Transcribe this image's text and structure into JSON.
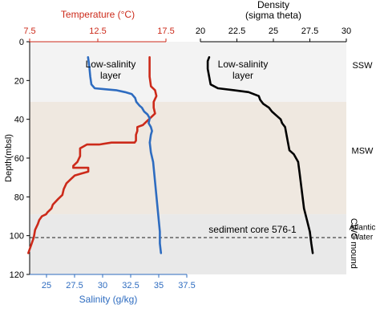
{
  "chart_data": [
    {
      "type": "line",
      "panel": "temperature-salinity",
      "ylabel": "Depth(mbsl)",
      "yticks": [
        "0",
        "20",
        "40",
        "60",
        "80",
        "100",
        "120"
      ],
      "ylim": [
        0,
        120
      ],
      "y_inverted": true,
      "top_axis": {
        "label": "Temperature (°C)",
        "color": "#cc2a1a",
        "lim": [
          7.5,
          17.5
        ],
        "ticks": [
          "7.5",
          "12.5",
          "17.5"
        ]
      },
      "bottom_axis": {
        "label": "Salinity (g/kg)",
        "color": "#2e6cc0",
        "lim": [
          23.5,
          37.5
        ],
        "ticks": [
          "25",
          "27.5",
          "30",
          "32.5",
          "35",
          "37.5"
        ]
      },
      "series": [
        {
          "axis": "top",
          "color": "#cc2a1a",
          "points": [
            [
              16.3,
              8
            ],
            [
              16.3,
              18
            ],
            [
              16.4,
              23
            ],
            [
              16.7,
              25
            ],
            [
              16.8,
              28
            ],
            [
              16.6,
              31
            ],
            [
              16.6,
              34
            ],
            [
              16.7,
              37
            ],
            [
              16.4,
              39
            ],
            [
              16.1,
              41
            ],
            [
              15.8,
              43
            ],
            [
              15.4,
              44
            ],
            [
              15.4,
              46
            ],
            [
              15.3,
              48
            ],
            [
              15.3,
              51
            ],
            [
              15.2,
              52
            ],
            [
              13.5,
              52
            ],
            [
              12.6,
              53
            ],
            [
              11.7,
              53
            ],
            [
              11.2,
              55
            ],
            [
              11.2,
              59
            ],
            [
              11.0,
              62
            ],
            [
              10.7,
              64
            ],
            [
              10.7,
              65
            ],
            [
              11.8,
              65
            ],
            [
              11.8,
              67
            ],
            [
              11.3,
              68
            ],
            [
              10.8,
              69
            ],
            [
              10.5,
              71
            ],
            [
              10.2,
              73
            ],
            [
              10.0,
              76
            ],
            [
              9.9,
              79
            ],
            [
              9.6,
              81
            ],
            [
              9.2,
              84
            ],
            [
              9.1,
              86
            ],
            [
              8.8,
              88
            ],
            [
              8.7,
              89
            ],
            [
              8.4,
              90
            ],
            [
              8.2,
              92
            ],
            [
              8.1,
              94
            ],
            [
              7.9,
              97
            ],
            [
              7.8,
              101
            ],
            [
              7.6,
              105
            ],
            [
              7.4,
              109
            ]
          ]
        },
        {
          "axis": "bottom",
          "color": "#2e6cc0",
          "points": [
            [
              28.7,
              8
            ],
            [
              28.8,
              12
            ],
            [
              28.9,
              18
            ],
            [
              29.0,
              22
            ],
            [
              29.3,
              24
            ],
            [
              30.2,
              24.5
            ],
            [
              31.2,
              25
            ],
            [
              32.0,
              26
            ],
            [
              32.6,
              27
            ],
            [
              32.9,
              29
            ],
            [
              33.0,
              31
            ],
            [
              33.3,
              33
            ],
            [
              33.5,
              34
            ],
            [
              33.7,
              36
            ],
            [
              34.0,
              37.5
            ],
            [
              34.2,
              39.5
            ],
            [
              34.1,
              42
            ],
            [
              34.3,
              44
            ],
            [
              34.4,
              46
            ],
            [
              34.3,
              48
            ],
            [
              34.2,
              52
            ],
            [
              34.3,
              57
            ],
            [
              34.5,
              62
            ],
            [
              34.6,
              68
            ],
            [
              34.7,
              74
            ],
            [
              34.8,
              80
            ],
            [
              34.9,
              86
            ],
            [
              35.0,
              92
            ],
            [
              35.1,
              98
            ],
            [
              35.1,
              104
            ],
            [
              35.2,
              109
            ]
          ]
        }
      ],
      "annotations": [
        "Low-salinity\nlayer"
      ]
    },
    {
      "type": "line",
      "panel": "density",
      "top_axis": {
        "label": "Density\n(sigma theta)",
        "color": "#000000",
        "lim": [
          20,
          30
        ],
        "ticks": [
          "20",
          "22.5",
          "25",
          "27.5",
          "30"
        ]
      },
      "series": [
        {
          "axis": "top",
          "color": "#000000",
          "points": [
            [
              20.6,
              8
            ],
            [
              20.5,
              10
            ],
            [
              20.5,
              14
            ],
            [
              20.6,
              18
            ],
            [
              20.7,
              22
            ],
            [
              21.2,
              24
            ],
            [
              22.3,
              25
            ],
            [
              23.3,
              26
            ],
            [
              24.0,
              28
            ],
            [
              24.1,
              30
            ],
            [
              24.3,
              32
            ],
            [
              24.7,
              34
            ],
            [
              24.9,
              36
            ],
            [
              25.2,
              38
            ],
            [
              25.5,
              40
            ],
            [
              25.6,
              42
            ],
            [
              25.8,
              44
            ],
            [
              25.9,
              48
            ],
            [
              26.0,
              52
            ],
            [
              26.1,
              56
            ],
            [
              26.4,
              58
            ],
            [
              26.7,
              62
            ],
            [
              26.8,
              68
            ],
            [
              26.9,
              74
            ],
            [
              27.0,
              80
            ],
            [
              27.1,
              86
            ],
            [
              27.3,
              92
            ],
            [
              27.5,
              98
            ],
            [
              27.6,
              104
            ],
            [
              27.7,
              109
            ]
          ]
        }
      ],
      "annotations": [
        "Low-salinity\nlayer"
      ]
    }
  ],
  "zones": [
    {
      "label": "SSW",
      "from": 0,
      "to": 31,
      "color": "#f3f3f3"
    },
    {
      "label": "MSW",
      "from": 31,
      "to": 89,
      "color": "#efe8e0"
    },
    {
      "label": "CWC mound",
      "from": 89,
      "to": 120,
      "color": "#e9e9e9"
    }
  ],
  "reference_line": {
    "depth": 101,
    "label": "sediment core 576-1"
  },
  "right_labels": {
    "ssw": "SSW",
    "msw": "MSW",
    "atlantic": "Atlantic\nWater",
    "cwc": "CWC mound"
  }
}
